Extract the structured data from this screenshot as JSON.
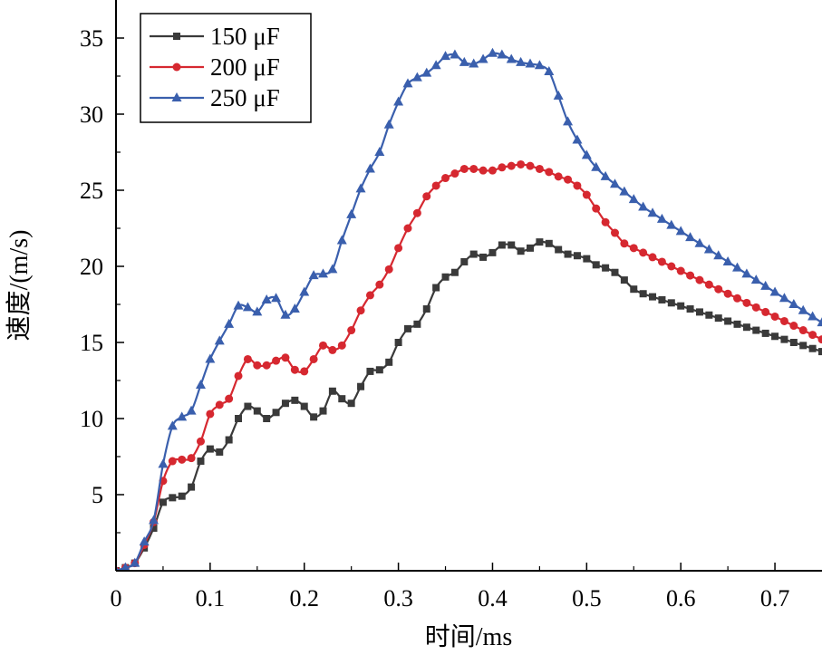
{
  "chart_data": {
    "type": "line",
    "title": "",
    "xlabel": "时间/ms",
    "ylabel": "速度/(m/s)",
    "xlim": [
      0,
      0.75
    ],
    "ylim": [
      0,
      37.5
    ],
    "x_ticks": [
      0,
      0.1,
      0.2,
      0.3,
      0.4,
      0.5,
      0.6,
      0.7
    ],
    "x_tick_labels": [
      "0",
      "0.1",
      "0.2",
      "0.3",
      "0.4",
      "0.5",
      "0.6",
      "0.7"
    ],
    "y_ticks": [
      5,
      10,
      15,
      20,
      25,
      30,
      35
    ],
    "y_tick_labels": [
      "5",
      "10",
      "15",
      "20",
      "25",
      "30",
      "35"
    ],
    "grid": false,
    "legend_position": "top-left",
    "series": [
      {
        "name": "150 μF",
        "color": "#3a3a3a",
        "marker": "square",
        "x": [
          0.0,
          0.01,
          0.02,
          0.03,
          0.04,
          0.05,
          0.06,
          0.07,
          0.08,
          0.09,
          0.1,
          0.11,
          0.12,
          0.13,
          0.14,
          0.15,
          0.16,
          0.17,
          0.18,
          0.19,
          0.2,
          0.21,
          0.22,
          0.23,
          0.24,
          0.25,
          0.26,
          0.27,
          0.28,
          0.29,
          0.3,
          0.31,
          0.32,
          0.33,
          0.34,
          0.35,
          0.36,
          0.37,
          0.38,
          0.39,
          0.4,
          0.41,
          0.42,
          0.43,
          0.44,
          0.45,
          0.46,
          0.47,
          0.48,
          0.49,
          0.5,
          0.51,
          0.52,
          0.53,
          0.54,
          0.55,
          0.56,
          0.57,
          0.58,
          0.59,
          0.6,
          0.61,
          0.62,
          0.63,
          0.64,
          0.65,
          0.66,
          0.67,
          0.68,
          0.69,
          0.7,
          0.71,
          0.72,
          0.73,
          0.74,
          0.75
        ],
        "values": [
          0.0,
          0.2,
          0.5,
          1.5,
          2.8,
          4.5,
          4.8,
          4.9,
          5.5,
          7.2,
          8.0,
          7.8,
          8.6,
          10.0,
          10.8,
          10.5,
          10.0,
          10.4,
          11.0,
          11.2,
          10.8,
          10.1,
          10.5,
          11.8,
          11.3,
          11.0,
          12.1,
          13.1,
          13.2,
          13.7,
          15.0,
          15.9,
          16.2,
          17.2,
          18.6,
          19.3,
          19.6,
          20.3,
          20.8,
          20.6,
          20.9,
          21.4,
          21.4,
          21.0,
          21.2,
          21.6,
          21.5,
          21.1,
          20.8,
          20.7,
          20.5,
          20.1,
          19.9,
          19.6,
          19.1,
          18.5,
          18.2,
          18.0,
          17.8,
          17.6,
          17.4,
          17.2,
          17.0,
          16.8,
          16.6,
          16.4,
          16.2,
          16.0,
          15.8,
          15.6,
          15.4,
          15.2,
          15.0,
          14.8,
          14.6,
          14.4
        ]
      },
      {
        "name": "200 μF",
        "color": "#d62830",
        "marker": "circle",
        "x": [
          0.0,
          0.01,
          0.02,
          0.03,
          0.04,
          0.05,
          0.06,
          0.07,
          0.08,
          0.09,
          0.1,
          0.11,
          0.12,
          0.13,
          0.14,
          0.15,
          0.16,
          0.17,
          0.18,
          0.19,
          0.2,
          0.21,
          0.22,
          0.23,
          0.24,
          0.25,
          0.26,
          0.27,
          0.28,
          0.29,
          0.3,
          0.31,
          0.32,
          0.33,
          0.34,
          0.35,
          0.36,
          0.37,
          0.38,
          0.39,
          0.4,
          0.41,
          0.42,
          0.43,
          0.44,
          0.45,
          0.46,
          0.47,
          0.48,
          0.49,
          0.5,
          0.51,
          0.52,
          0.53,
          0.54,
          0.55,
          0.56,
          0.57,
          0.58,
          0.59,
          0.6,
          0.61,
          0.62,
          0.63,
          0.64,
          0.65,
          0.66,
          0.67,
          0.68,
          0.69,
          0.7,
          0.71,
          0.72,
          0.73,
          0.74,
          0.75
        ],
        "values": [
          0.0,
          0.2,
          0.5,
          1.7,
          3.2,
          5.9,
          7.2,
          7.3,
          7.4,
          8.5,
          10.3,
          10.9,
          11.3,
          12.8,
          13.9,
          13.5,
          13.5,
          13.8,
          14.0,
          13.2,
          13.1,
          13.9,
          14.8,
          14.5,
          14.8,
          15.8,
          17.1,
          18.1,
          18.8,
          19.8,
          21.2,
          22.5,
          23.5,
          24.6,
          25.3,
          25.8,
          26.1,
          26.4,
          26.4,
          26.3,
          26.3,
          26.5,
          26.6,
          26.7,
          26.6,
          26.4,
          26.2,
          25.9,
          25.7,
          25.3,
          24.7,
          23.8,
          22.9,
          22.2,
          21.5,
          21.2,
          20.9,
          20.6,
          20.3,
          20.0,
          19.7,
          19.4,
          19.1,
          18.8,
          18.5,
          18.2,
          17.9,
          17.6,
          17.3,
          17.0,
          16.7,
          16.4,
          16.1,
          15.8,
          15.5,
          15.2
        ]
      },
      {
        "name": "250 μF",
        "color": "#3a5fad",
        "marker": "triangle",
        "x": [
          0.0,
          0.01,
          0.02,
          0.03,
          0.04,
          0.05,
          0.06,
          0.07,
          0.08,
          0.09,
          0.1,
          0.11,
          0.12,
          0.13,
          0.14,
          0.15,
          0.16,
          0.17,
          0.18,
          0.19,
          0.2,
          0.21,
          0.22,
          0.23,
          0.24,
          0.25,
          0.26,
          0.27,
          0.28,
          0.29,
          0.3,
          0.31,
          0.32,
          0.33,
          0.34,
          0.35,
          0.36,
          0.37,
          0.38,
          0.39,
          0.4,
          0.41,
          0.42,
          0.43,
          0.44,
          0.45,
          0.46,
          0.47,
          0.48,
          0.49,
          0.5,
          0.51,
          0.52,
          0.53,
          0.54,
          0.55,
          0.56,
          0.57,
          0.58,
          0.59,
          0.6,
          0.61,
          0.62,
          0.63,
          0.64,
          0.65,
          0.66,
          0.67,
          0.68,
          0.69,
          0.7,
          0.71,
          0.72,
          0.73,
          0.74,
          0.75
        ],
        "values": [
          0.0,
          0.2,
          0.5,
          1.9,
          3.3,
          7.0,
          9.5,
          10.1,
          10.5,
          12.2,
          13.9,
          15.1,
          16.2,
          17.4,
          17.3,
          17.0,
          17.8,
          17.9,
          16.8,
          17.2,
          18.3,
          19.4,
          19.5,
          19.8,
          21.7,
          23.4,
          25.1,
          26.4,
          27.5,
          29.3,
          30.8,
          32.0,
          32.4,
          32.7,
          33.2,
          33.8,
          33.9,
          33.4,
          33.3,
          33.6,
          34.0,
          33.9,
          33.6,
          33.4,
          33.3,
          33.2,
          32.8,
          31.2,
          29.5,
          28.3,
          27.3,
          26.5,
          25.9,
          25.4,
          24.9,
          24.4,
          23.9,
          23.5,
          23.1,
          22.7,
          22.3,
          21.9,
          21.5,
          21.1,
          20.7,
          20.3,
          19.9,
          19.5,
          19.1,
          18.7,
          18.3,
          17.9,
          17.5,
          17.1,
          16.7,
          16.3
        ]
      }
    ]
  }
}
